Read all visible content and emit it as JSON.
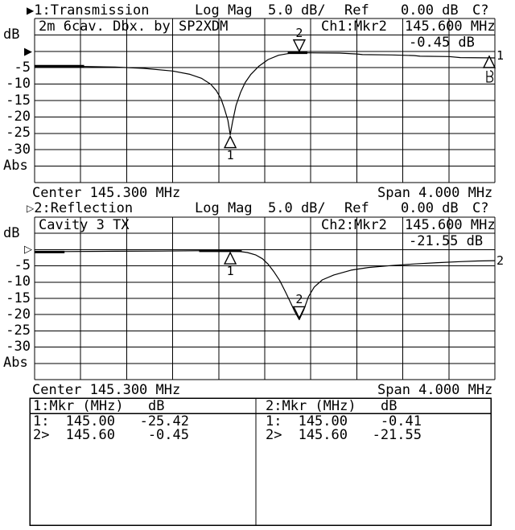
{
  "window": {
    "bg": "#ffffff",
    "fg": "#000000"
  },
  "ch1": {
    "header": {
      "arrow": "▶",
      "trace": "1:Transmission",
      "format": "Log Mag",
      "scale": "5.0 dB/",
      "ref_label": "Ref",
      "ref_value": "0.00 dB",
      "cal": "C?"
    },
    "title": "2m 6cav. Dbx. by SP2XDM",
    "readout": {
      "source": "Ch1:Mkr2",
      "freq": "145.600 MHz",
      "value": "-0.45 dB"
    },
    "yticks": [
      "dB",
      "-5",
      "-10",
      "-15",
      "-20",
      "-25",
      "-30",
      "Abs"
    ],
    "ref_arrow": "▶",
    "trace_end_label": "1",
    "center_label": "Center 145.300 MHz",
    "span_label": "Span 4.000 MHz"
  },
  "ch2": {
    "header": {
      "arrow": "▷",
      "trace": "2:Reflection",
      "format": "Log Mag",
      "scale": "5.0 dB/",
      "ref_label": "Ref",
      "ref_value": "0.00 dB",
      "cal": "C?"
    },
    "title": "Cavity 3 TX",
    "readout": {
      "source": "Ch2:Mkr2",
      "freq": "145.600 MHz",
      "value": "-21.55 dB"
    },
    "yticks": [
      "dB",
      "-5",
      "-10",
      "-15",
      "-20",
      "-25",
      "-30",
      "Abs"
    ],
    "ref_arrow": "▷",
    "trace_end_label": "2",
    "center_label": "Center 145.300 MHz",
    "span_label": "Span 4.000 MHz"
  },
  "marker_table": {
    "panels": [
      {
        "title": "1:Mkr (MHz)",
        "unit": "dB",
        "rows": [
          {
            "id": "1:",
            "freq": "145.00",
            "db": "-25.42"
          },
          {
            "id": "2>",
            "freq": "145.60",
            "db": "-0.45"
          }
        ]
      },
      {
        "title": "2:Mkr (MHz)",
        "unit": "dB",
        "rows": [
          {
            "id": "1:",
            "freq": "145.00",
            "db": "-0.41"
          },
          {
            "id": "2>",
            "freq": "145.60",
            "db": "-21.55"
          }
        ]
      }
    ]
  },
  "chart_data": [
    {
      "type": "line",
      "name": "Transmission (Ch1)",
      "title": "2m 6cav. Dbx. by SP2XDM",
      "x_unit": "MHz",
      "y_unit": "dB",
      "center_mhz": 145.3,
      "span_mhz": 4.0,
      "scale_db_per_div": 5.0,
      "ref_db": 0.0,
      "xlim": [
        143.3,
        147.3
      ],
      "ylim": [
        -40,
        10
      ],
      "grid": true,
      "points": [
        [
          143.3,
          -4.5
        ],
        [
          143.7,
          -4.6
        ],
        [
          144.0,
          -4.8
        ],
        [
          144.25,
          -5.2
        ],
        [
          144.5,
          -6.0
        ],
        [
          144.65,
          -7.0
        ],
        [
          144.75,
          -8.2
        ],
        [
          144.83,
          -10.0
        ],
        [
          144.88,
          -12.0
        ],
        [
          144.92,
          -14.5
        ],
        [
          144.95,
          -17.5
        ],
        [
          144.98,
          -21.0
        ],
        [
          145.0,
          -25.42
        ],
        [
          145.02,
          -21.5
        ],
        [
          145.05,
          -16.5
        ],
        [
          145.09,
          -12.5
        ],
        [
          145.13,
          -9.5
        ],
        [
          145.18,
          -7.0
        ],
        [
          145.25,
          -4.5
        ],
        [
          145.33,
          -2.5
        ],
        [
          145.42,
          -1.2
        ],
        [
          145.52,
          -0.6
        ],
        [
          145.6,
          -0.45
        ],
        [
          145.75,
          -0.5
        ],
        [
          145.95,
          -0.55
        ],
        [
          146.1,
          -0.8
        ],
        [
          146.15,
          -1.0
        ],
        [
          146.4,
          -1.1
        ],
        [
          146.6,
          -1.3
        ],
        [
          146.65,
          -1.5
        ],
        [
          146.9,
          -1.6
        ],
        [
          147.0,
          -1.9
        ],
        [
          147.3,
          -2.0
        ]
      ],
      "bold_segments": [
        [
          143.3,
          143.73,
          -4.5
        ],
        [
          145.5,
          145.67,
          -0.45
        ]
      ],
      "markers": [
        {
          "n": "1",
          "mhz": 145.0,
          "db": -25.42,
          "dir": "up"
        },
        {
          "n": "2",
          "mhz": 145.6,
          "db": -0.45,
          "dir": "down",
          "active": true
        }
      ]
    },
    {
      "type": "line",
      "name": "Reflection (Ch2)",
      "title": "Cavity 3 TX",
      "x_unit": "MHz",
      "y_unit": "dB",
      "center_mhz": 145.3,
      "span_mhz": 4.0,
      "scale_db_per_div": 5.0,
      "ref_db": 0.0,
      "xlim": [
        143.3,
        147.3
      ],
      "ylim": [
        -40,
        10
      ],
      "grid": true,
      "points": [
        [
          143.3,
          -0.75
        ],
        [
          143.5,
          -0.8
        ],
        [
          143.55,
          -0.6
        ],
        [
          144.0,
          -0.5
        ],
        [
          144.4,
          -0.45
        ],
        [
          144.7,
          -0.35
        ],
        [
          144.9,
          -0.35
        ],
        [
          145.0,
          -0.41
        ],
        [
          145.08,
          -0.55
        ],
        [
          145.15,
          -0.9
        ],
        [
          145.22,
          -1.6
        ],
        [
          145.28,
          -2.8
        ],
        [
          145.33,
          -4.5
        ],
        [
          145.38,
          -6.8
        ],
        [
          145.43,
          -9.5
        ],
        [
          145.48,
          -13.0
        ],
        [
          145.52,
          -16.0
        ],
        [
          145.56,
          -19.0
        ],
        [
          145.6,
          -21.55
        ],
        [
          145.64,
          -18.5
        ],
        [
          145.68,
          -14.5
        ],
        [
          145.73,
          -11.5
        ],
        [
          145.8,
          -9.3
        ],
        [
          145.9,
          -7.8
        ],
        [
          146.05,
          -6.3
        ],
        [
          146.2,
          -5.5
        ],
        [
          146.4,
          -4.9
        ],
        [
          146.6,
          -4.4
        ],
        [
          146.8,
          -4.0
        ],
        [
          147.0,
          -3.7
        ],
        [
          147.15,
          -3.5
        ],
        [
          147.3,
          -3.4
        ]
      ],
      "bold_segments": [
        [
          143.3,
          143.56,
          -0.75
        ],
        [
          144.73,
          145.1,
          -0.38
        ]
      ],
      "markers": [
        {
          "n": "1",
          "mhz": 145.0,
          "db": -0.41,
          "dir": "up"
        },
        {
          "n": "2",
          "mhz": 145.6,
          "db": -21.55,
          "dir": "down",
          "active": true
        }
      ]
    }
  ]
}
